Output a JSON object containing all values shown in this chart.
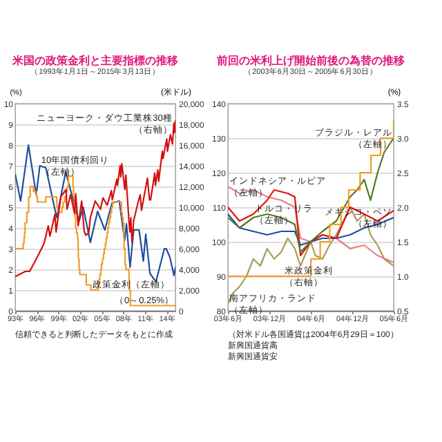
{
  "chart_data": [
    {
      "type": "line",
      "title": "米国の政策金利と主要指標の推移",
      "subtitle": "（1993年1月1日～2015年3月13日）",
      "ylabel": "(%)",
      "y2label": "(米ドル)",
      "grid": "y",
      "xlim": [
        "1993-01-01",
        "2015-03-13"
      ],
      "xticks": [
        {
          "value": "1993-01-01",
          "label": "93年"
        },
        {
          "value": "1996-01-01",
          "label": "96年"
        },
        {
          "value": "1999-01-01",
          "label": "99年"
        },
        {
          "value": "2002-01-01",
          "label": "02年"
        },
        {
          "value": "2005-01-01",
          "label": "05年"
        },
        {
          "value": "2008-01-01",
          "label": "08年"
        },
        {
          "value": "2011-01-01",
          "label": "11年"
        },
        {
          "value": "2014-01-01",
          "label": "14年"
        }
      ],
      "ylim": [
        0,
        10
      ],
      "yticks": [
        0,
        1,
        2,
        3,
        4,
        5,
        6,
        7,
        8,
        9,
        10
      ],
      "y2lim": [
        0,
        20000
      ],
      "y2ticks": [
        0,
        {
          "value": 2000,
          "label": "2,000"
        },
        {
          "value": 4000,
          "label": "4,000"
        },
        {
          "value": 6000,
          "label": "6,000"
        },
        {
          "value": 8000,
          "label": "8,000"
        },
        {
          "value": 10000,
          "label": "10,000"
        },
        {
          "value": 12000,
          "label": "12,000"
        },
        {
          "value": 14000,
          "label": "14,000"
        },
        {
          "value": 16000,
          "label": "16,000"
        },
        {
          "value": 18000,
          "label": "18,000"
        },
        {
          "value": 20000,
          "label": "20,000"
        }
      ],
      "series": [
        {
          "type": "line",
          "color": "#1f4e9c",
          "x": [
            "1993-01-01",
            "1993-10-01",
            "1994-11-01",
            "1995-12-01",
            "1996-06-01",
            "1997-04-01",
            "1998-10-01",
            "2000-01-01",
            "2001-11-01",
            "2002-06-01",
            "2003-06-01",
            "2004-06-01",
            "2005-06-01",
            "2006-06-01",
            "2007-06-01",
            "2008-03-01",
            "2008-06-01",
            "2008-12-01",
            "2009-06-01",
            "2010-03-01",
            "2010-10-01",
            "2011-02-01",
            "2011-09-01",
            "2012-07-01",
            "2013-09-01",
            "2013-12-01",
            "2014-06-01",
            "2015-01-01",
            "2015-03-13"
          ],
          "values": [
            6.6,
            5.3,
            8.0,
            5.6,
            7.0,
            6.9,
            4.5,
            6.7,
            4.3,
            5.0,
            3.3,
            4.8,
            3.9,
            5.2,
            5.3,
            3.4,
            4.2,
            2.1,
            3.9,
            3.9,
            2.4,
            3.7,
            1.8,
            1.4,
            3.0,
            3.0,
            2.6,
            1.7,
            2.1
          ]
        },
        {
          "type": "step",
          "color": "#f59a23",
          "x": [
            "1993-01-01",
            "1994-02-04",
            "1994-03-22",
            "1994-04-18",
            "1994-05-17",
            "1994-08-16",
            "1994-11-15",
            "1995-02-01",
            "1995-07-06",
            "1995-12-19",
            "1996-01-31",
            "1997-03-25",
            "1998-09-29",
            "1998-10-15",
            "1998-11-17",
            "1999-06-30",
            "1999-08-24",
            "1999-11-16",
            "2000-02-02",
            "2000-03-21",
            "2000-05-16",
            "2001-01-03",
            "2001-01-31",
            "2001-03-20",
            "2001-04-18",
            "2001-05-15",
            "2001-06-27",
            "2001-08-21",
            "2001-09-17",
            "2001-10-02",
            "2001-11-06",
            "2001-12-11",
            "2002-11-06",
            "2003-06-25",
            "2004-06-30",
            "2004-08-10",
            "2004-09-21",
            "2004-11-10",
            "2004-12-14",
            "2005-02-02",
            "2005-03-22",
            "2005-05-03",
            "2005-06-30",
            "2005-08-09",
            "2005-09-20",
            "2005-11-01",
            "2005-12-13",
            "2006-01-31",
            "2006-03-28",
            "2006-05-10",
            "2006-06-29",
            "2007-09-18",
            "2007-10-31",
            "2007-12-11",
            "2008-01-22",
            "2008-01-30",
            "2008-03-18",
            "2008-04-30",
            "2008-10-08",
            "2008-10-29",
            "2008-12-16",
            "2015-03-13"
          ],
          "values": [
            3.0,
            3.25,
            3.5,
            3.75,
            4.25,
            4.75,
            5.5,
            6.0,
            5.75,
            5.5,
            5.25,
            5.5,
            5.25,
            5.0,
            4.75,
            5.0,
            5.25,
            5.5,
            5.75,
            6.0,
            6.5,
            6.0,
            5.5,
            5.0,
            4.5,
            4.0,
            3.75,
            3.5,
            3.0,
            2.5,
            2.0,
            1.75,
            1.25,
            1.0,
            1.25,
            1.5,
            1.75,
            2.0,
            2.25,
            2.5,
            2.75,
            3.0,
            3.25,
            3.5,
            3.75,
            4.0,
            4.25,
            4.5,
            4.75,
            5.0,
            5.25,
            4.75,
            4.5,
            4.25,
            3.5,
            3.0,
            2.25,
            2.0,
            1.5,
            1.0,
            0.25,
            0.25
          ]
        },
        {
          "type": "line",
          "color": "#d40f0f",
          "axis": "y2",
          "x": [
            "1993-01-01",
            "1994-06-01",
            "1995-01-01",
            "1996-01-01",
            "1997-01-01",
            "1997-08-01",
            "1997-10-27",
            "1998-07-01",
            "1998-09-01",
            "1999-05-01",
            "2000-01-14",
            "2000-03-07",
            "2000-09-01",
            "2001-03-22",
            "2001-05-21",
            "2001-09-21",
            "2002-03-19",
            "2002-07-23",
            "2002-10-09",
            "2003-03-11",
            "2003-06-01",
            "2004-02-01",
            "2004-10-25",
            "2005-03-01",
            "2005-10-01",
            "2006-05-01",
            "2006-06-13",
            "2007-02-01",
            "2007-03-05",
            "2007-07-16",
            "2007-08-16",
            "2007-10-09",
            "2008-03-10",
            "2008-05-01",
            "2008-07-15",
            "2008-10-10",
            "2008-11-20",
            "2009-01-06",
            "2009-03-09",
            "2009-06-01",
            "2009-12-31",
            "2010-04-26",
            "2010-07-02",
            "2010-12-31",
            "2011-04-29",
            "2011-08-10",
            "2011-10-03",
            "2012-05-01",
            "2012-06-04",
            "2012-10-05",
            "2012-11-15",
            "2013-05-21",
            "2013-06-24",
            "2013-12-31",
            "2014-02-03",
            "2014-07-01",
            "2014-10-15",
            "2014-12-26",
            "2015-01-30",
            "2015-03-02",
            "2015-03-13"
          ],
          "values": [
            3300,
            3800,
            3800,
            5100,
            6500,
            8200,
            7200,
            9300,
            7600,
            11000,
            11700,
            9800,
            11200,
            9400,
            11300,
            8200,
            10600,
            7700,
            7300,
            7500,
            9000,
            10600,
            9800,
            10900,
            10200,
            11600,
            10700,
            12700,
            12100,
            14000,
            12900,
            14200,
            11700,
            13100,
            11000,
            8500,
            7600,
            9000,
            6600,
            8700,
            10400,
            11200,
            9700,
            11600,
            12800,
            10700,
            10700,
            13300,
            12100,
            13600,
            12500,
            15400,
            14700,
            16600,
            15400,
            17000,
            16100,
            18100,
            17200,
            18300,
            17800
          ]
        }
      ],
      "annotations": [
        {
          "text": "10年国債利回り（左軸）",
          "x": "1996-06-01",
          "y": 7.0
        },
        {
          "text": "ニューヨーク・ダウ工業株30種（右軸）",
          "x": "2014-12-26",
          "y": 9.05
        },
        {
          "text": "政策金利（左軸）",
          "x": "2003-06-25",
          "y": 1.0
        },
        {
          "text": "（0～0.25%）",
          "x": "2015-03-13",
          "y": 0.25
        },
        "信頼できると判断したデータをもとに作成"
      ]
    },
    {
      "type": "line",
      "title": "前回の米利上げ開始前後の為替の推移",
      "subtitle": "（2003年6月30日～2005年6月30日）",
      "y2label": "(%)",
      "grid": "y",
      "xlim": [
        "2003-06-30",
        "2005-06-30"
      ],
      "xticks": [
        {
          "value": "2003-06-30",
          "label": "03年6月"
        },
        {
          "value": "2003-12-30",
          "label": "03年12月"
        },
        {
          "value": "2004-06-30",
          "label": "04年6月"
        },
        {
          "value": "2004-12-30",
          "label": "04年12月"
        },
        {
          "value": "2005-06-30",
          "label": "05年6月"
        }
      ],
      "ylim": [
        80,
        140
      ],
      "yticks": [
        80,
        90,
        100,
        110,
        120,
        130,
        140
      ],
      "y2lim": [
        0.5,
        3.5
      ],
      "y2ticks": [
        0.5,
        {
          "value": 1,
          "label": "1.0"
        },
        1.5,
        {
          "value": 2,
          "label": "2.0"
        },
        2.5,
        {
          "value": 3,
          "label": "3.0"
        },
        3.5
      ],
      "series": [
        {
          "type": "line",
          "color": "#a89a5a",
          "x": [
            "2003-06-30",
            "2003-07-20",
            "2003-08-20",
            "2003-09-20",
            "2003-10-20",
            "2003-11-20",
            "2003-12-20",
            "2004-01-20",
            "2004-02-20",
            "2004-03-20",
            "2004-04-20",
            "2004-05-15",
            "2004-06-29",
            "2004-07-20",
            "2004-08-20",
            "2004-09-20",
            "2004-10-20",
            "2004-11-20",
            "2004-12-20",
            "2005-01-20",
            "2005-02-20",
            "2005-03-20",
            "2005-04-20",
            "2005-05-20",
            "2005-06-30"
          ],
          "values": [
            82,
            85,
            87,
            90,
            95,
            93,
            98,
            95,
            97,
            101,
            98,
            93,
            100,
            96,
            95,
            99,
            102,
            106,
            110,
            106,
            108,
            102,
            99,
            95,
            93
          ]
        },
        {
          "type": "line",
          "color": "#e68080",
          "x": [
            "2003-06-30",
            "2003-08-20",
            "2003-10-20",
            "2003-12-20",
            "2004-02-20",
            "2004-04-20",
            "2004-05-15",
            "2004-06-29",
            "2004-08-20",
            "2004-10-20",
            "2004-12-20",
            "2005-02-20",
            "2005-04-20",
            "2005-06-30"
          ],
          "values": [
            116,
            114,
            115,
            113,
            112,
            110,
            101,
            100,
            102,
            101,
            98,
            99,
            96,
            94
          ]
        },
        {
          "type": "line",
          "color": "#1f4e9c",
          "x": [
            "2003-06-30",
            "2003-08-20",
            "2003-10-20",
            "2003-12-20",
            "2004-02-20",
            "2004-04-20",
            "2004-05-15",
            "2004-06-29",
            "2004-08-20",
            "2004-10-20",
            "2004-12-20",
            "2005-02-20",
            "2005-04-20",
            "2005-06-30"
          ],
          "values": [
            108,
            104,
            103,
            102,
            103,
            103,
            99,
            100,
            101,
            101,
            102,
            104,
            105,
            107
          ]
        },
        {
          "type": "line",
          "color": "#e01010",
          "x": [
            "2003-06-30",
            "2003-08-20",
            "2003-10-20",
            "2003-12-20",
            "2004-01-20",
            "2004-03-20",
            "2004-04-20",
            "2004-05-15",
            "2004-06-29",
            "2004-08-20",
            "2004-10-20",
            "2004-12-20",
            "2005-02-20",
            "2005-04-20",
            "2005-06-30"
          ],
          "values": [
            110,
            106,
            108,
            112,
            115,
            114,
            113,
            96,
            100,
            102,
            101,
            110,
            108,
            106,
            109
          ]
        },
        {
          "type": "line",
          "color": "#4f7a1c",
          "x": [
            "2003-06-30",
            "2003-08-20",
            "2003-10-20",
            "2003-12-20",
            "2004-02-20",
            "2004-04-20",
            "2004-05-15",
            "2004-06-29",
            "2004-08-20",
            "2004-10-20",
            "2004-12-20",
            "2005-01-20",
            "2005-02-20",
            "2005-03-20",
            "2005-04-20",
            "2005-05-20",
            "2005-06-30"
          ],
          "values": [
            107,
            104,
            107,
            108,
            107,
            105,
            97,
            100,
            103,
            106,
            113,
            115,
            118,
            112,
            120,
            126,
            130
          ]
        },
        {
          "type": "step",
          "color": "#f59a23",
          "axis": "y2",
          "x": [
            "2003-06-30",
            "2004-06-30",
            "2004-08-10",
            "2004-09-21",
            "2004-11-10",
            "2004-12-14",
            "2005-02-02",
            "2005-03-22",
            "2005-05-03",
            "2005-06-30"
          ],
          "values": [
            1.0,
            1.25,
            1.5,
            1.75,
            2.0,
            2.25,
            2.5,
            2.75,
            3.0,
            3.25
          ]
        }
      ],
      "annotations": [
        {
          "text": "インドネシア・ルピア（左軸）",
          "x": "2003-06-30",
          "y": 116
        },
        {
          "text": "トルコ・リラ（左軸）",
          "x": "2003-10-20",
          "y": 108
        },
        {
          "text": "ブラジル・レアル（左軸）",
          "x": "2005-06-30",
          "y": 130
        },
        {
          "text": "メキシコ・ペソ（左軸）",
          "x": "2005-06-30",
          "y": 107
        },
        {
          "text": "米政策金利（右軸）",
          "x": "2004-03-01",
          "y": 90
        },
        {
          "text": "南アフリカ・ランド（左軸）",
          "x": "2003-06-30",
          "y": 82
        },
        "（対米ドル各国通貨は2004年6月29日＝100）",
        "新興国通貨高",
        "新興国通貨安"
      ]
    }
  ]
}
